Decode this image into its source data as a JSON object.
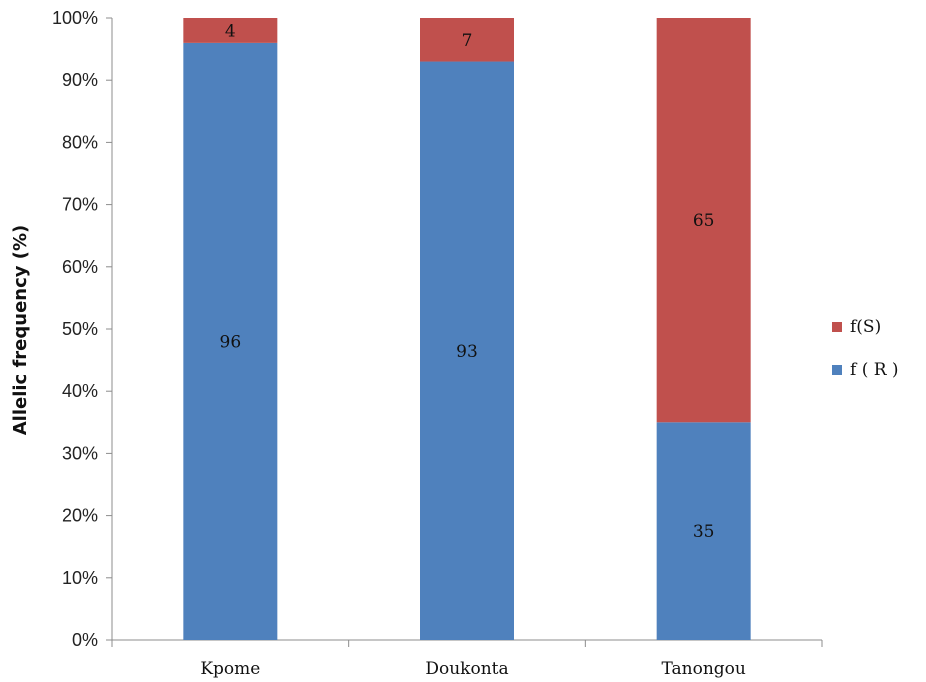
{
  "chart_data": {
    "type": "bar",
    "stacked": "percent",
    "categories": [
      "Kpome",
      "Doukonta",
      "Tanongou"
    ],
    "series": [
      {
        "name": "f ( R )",
        "values": [
          96,
          93,
          35
        ],
        "color": "#4f81bd"
      },
      {
        "name": "f(S)",
        "values": [
          4,
          7,
          65
        ],
        "color": "#c0504d"
      }
    ],
    "ylabel": "Allelic frequency (%)",
    "ylim": [
      0,
      100
    ],
    "yticks": [
      "0%",
      "10%",
      "20%",
      "30%",
      "40%",
      "50%",
      "60%",
      "70%",
      "80%",
      "90%",
      "100%"
    ],
    "legend_position": "right",
    "grid": false
  }
}
